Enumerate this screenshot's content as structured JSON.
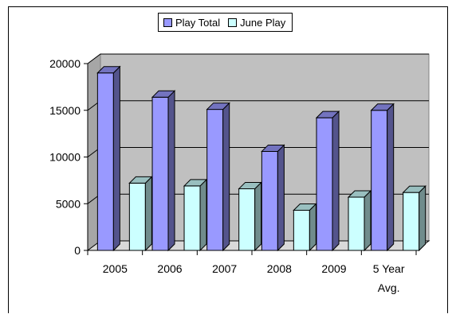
{
  "chart_data": {
    "type": "bar",
    "categories": [
      "2005",
      "2006",
      "2007",
      "2008",
      "2009",
      "5 Year Avg."
    ],
    "category_lines": [
      [
        "2005"
      ],
      [
        "2006"
      ],
      [
        "2007"
      ],
      [
        "2008"
      ],
      [
        "2009"
      ],
      [
        "5 Year",
        "Avg."
      ]
    ],
    "series": [
      {
        "name": "Play Total",
        "values": [
          19000,
          16400,
          15100,
          10600,
          14200,
          15000
        ],
        "color": "#9999ff"
      },
      {
        "name": "June Play",
        "values": [
          7200,
          6900,
          6600,
          4300,
          5700,
          6200
        ],
        "color": "#ccffff"
      }
    ],
    "yticks": [
      "0",
      "5000",
      "10000",
      "15000",
      "20000"
    ],
    "ylim": [
      0,
      20000
    ],
    "grid": true,
    "legend_position": "top-center",
    "three_d": true,
    "wall_color": "#c0c0c0"
  }
}
